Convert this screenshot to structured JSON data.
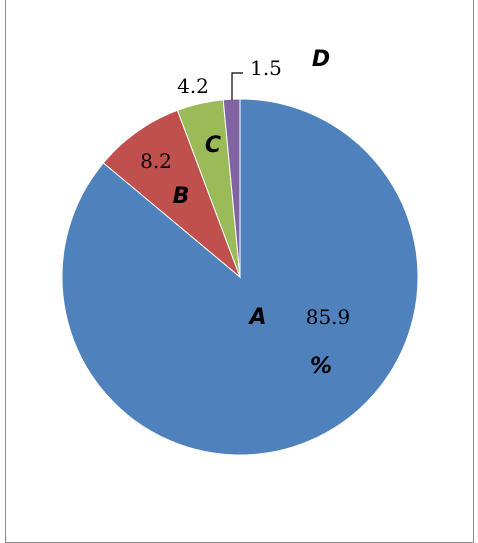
{
  "chart_data": {
    "type": "pie",
    "title": "",
    "slices": [
      {
        "label": "A",
        "value": 85.9,
        "value_text": "85.9",
        "color": "#4f81bd"
      },
      {
        "label": "B",
        "value": 8.2,
        "value_text": "8.2",
        "color": "#c0504d"
      },
      {
        "label": "C",
        "value": 4.2,
        "value_text": "4.2",
        "color": "#9bbb59"
      },
      {
        "label": "D",
        "value": 1.5,
        "value_text": "1.5",
        "color": "#8064a2"
      }
    ],
    "unit": "%",
    "start_angle": "12 o'clock",
    "direction": "clockwise",
    "legend": "none"
  }
}
